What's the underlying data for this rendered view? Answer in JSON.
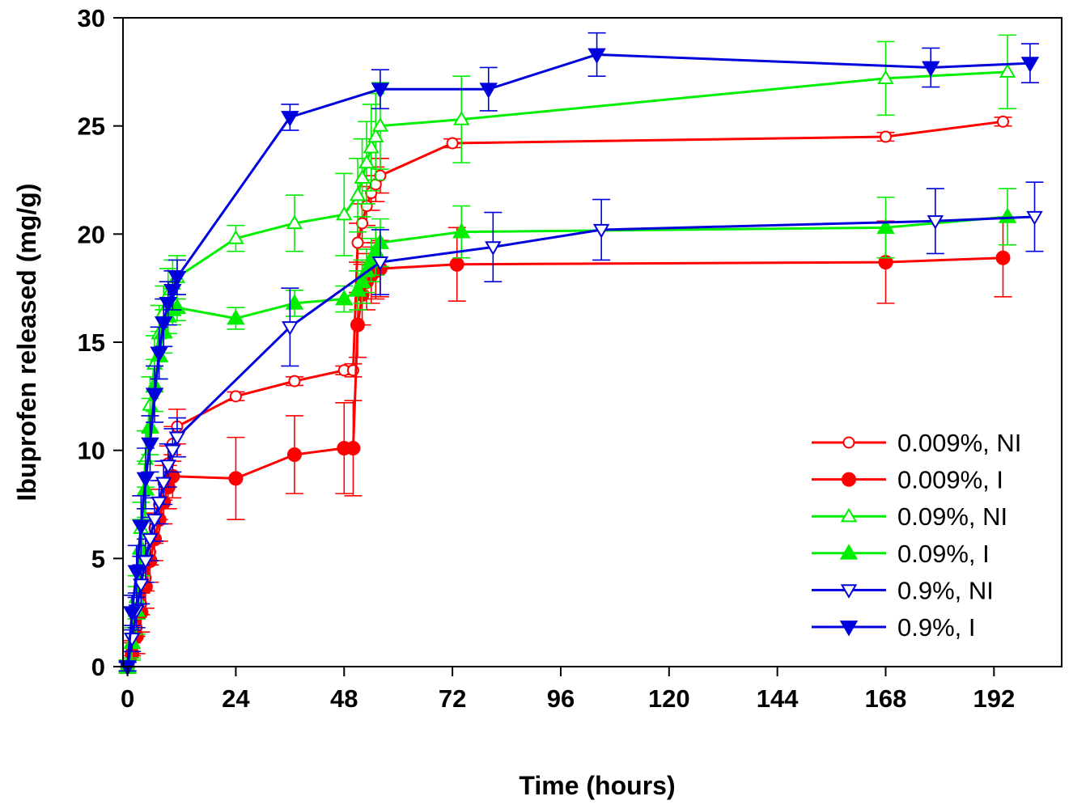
{
  "chart_data": {
    "type": "line",
    "title": "",
    "xlabel": "Time (hours)",
    "ylabel": "Ibuprofen released (mg/g)",
    "xlim": [
      -1,
      207
    ],
    "ylim": [
      0,
      30
    ],
    "xticks": [
      0,
      24,
      48,
      72,
      96,
      120,
      144,
      168,
      192
    ],
    "yticks": [
      0,
      5,
      10,
      15,
      20,
      25,
      30
    ],
    "grid": false,
    "legend_position": "lower-right",
    "series": [
      {
        "name": "0.009%, NI",
        "color": "#ff0000",
        "marker": "circle",
        "filled": false,
        "x": [
          0,
          1,
          2,
          3,
          4,
          5,
          6,
          7,
          8,
          9,
          10,
          11,
          24,
          37,
          48,
          50,
          51,
          52,
          53,
          54,
          55,
          56,
          72,
          168,
          194
        ],
        "y": [
          0,
          0.8,
          1.8,
          2.9,
          4.1,
          5.3,
          6.4,
          7.5,
          8.5,
          9.4,
          10.3,
          11.1,
          12.5,
          13.2,
          13.7,
          13.7,
          19.6,
          20.5,
          21.3,
          21.9,
          22.3,
          22.7,
          24.2,
          24.5,
          25.2
        ],
        "err": [
          0.2,
          0.3,
          0.4,
          0.5,
          0.6,
          0.6,
          0.7,
          0.7,
          0.8,
          0.8,
          0.8,
          0.8,
          0.2,
          0.2,
          0.2,
          0.3,
          0.9,
          0.9,
          0.9,
          0.8,
          0.8,
          0.8,
          0.2,
          0.2,
          0.2
        ]
      },
      {
        "name": "0.009%, I",
        "color": "#ff0000",
        "marker": "circle",
        "filled": true,
        "x": [
          0,
          1,
          2,
          3,
          4,
          5,
          6,
          7,
          8,
          9,
          10,
          24,
          37,
          48,
          50,
          51,
          52,
          53,
          54,
          55,
          56,
          73,
          168,
          194
        ],
        "y": [
          0,
          0.6,
          1.4,
          2.5,
          3.7,
          4.9,
          5.9,
          6.8,
          7.6,
          8.3,
          8.8,
          8.7,
          9.8,
          10.1,
          10.1,
          15.8,
          17.2,
          17.8,
          18.1,
          18.3,
          18.4,
          18.6,
          18.7,
          18.9
        ],
        "err": [
          0.3,
          0.6,
          0.8,
          0.9,
          1.0,
          1.0,
          1.0,
          1.0,
          1.0,
          1.0,
          1.0,
          1.9,
          1.8,
          2.1,
          2.2,
          1.5,
          1.4,
          1.3,
          1.3,
          1.3,
          1.3,
          1.7,
          1.9,
          1.8
        ]
      },
      {
        "name": "0.09%, NI",
        "color": "#00ee00",
        "marker": "triangle-up",
        "filled": false,
        "x": [
          0,
          1,
          2,
          3,
          4,
          5,
          6,
          7,
          8,
          9,
          10,
          11,
          24,
          37,
          48,
          51,
          52,
          53,
          54,
          55,
          56,
          74,
          168,
          195
        ],
        "y": [
          0,
          1.1,
          3.2,
          6.4,
          9.6,
          12.1,
          14.0,
          15.4,
          16.4,
          17.2,
          17.7,
          18.0,
          19.8,
          20.5,
          20.9,
          21.8,
          22.6,
          23.3,
          24.0,
          24.5,
          25.0,
          25.3,
          27.2,
          27.5
        ],
        "err": [
          0.3,
          0.7,
          1.0,
          1.2,
          1.3,
          1.3,
          1.3,
          1.3,
          1.2,
          1.2,
          1.1,
          1.0,
          0.6,
          1.3,
          1.9,
          1.7,
          1.8,
          1.9,
          2.0,
          2.0,
          2.0,
          2.0,
          1.7,
          1.7
        ]
      },
      {
        "name": "0.09%, I",
        "color": "#00ee00",
        "marker": "triangle-up",
        "filled": true,
        "x": [
          0,
          1,
          2,
          3,
          4,
          5,
          6,
          7,
          8,
          9,
          10,
          11,
          24,
          37,
          48,
          51,
          52,
          53,
          54,
          55,
          56,
          74,
          168,
          195
        ],
        "y": [
          0,
          1.1,
          2.6,
          5.5,
          8.2,
          11.1,
          13.0,
          14.4,
          15.5,
          16.2,
          16.5,
          16.6,
          16.1,
          16.8,
          17.0,
          17.4,
          17.8,
          18.3,
          18.8,
          19.2,
          19.6,
          20.1,
          20.3,
          20.8
        ],
        "err": [
          0.2,
          0.8,
          1.1,
          1.3,
          1.3,
          1.3,
          1.2,
          1.1,
          1.0,
          0.8,
          0.7,
          0.6,
          0.5,
          0.6,
          0.6,
          0.9,
          1.0,
          1.0,
          1.0,
          1.1,
          1.1,
          1.2,
          1.4,
          1.3
        ]
      },
      {
        "name": "0.9%, NI",
        "color": "#0000dd",
        "marker": "triangle-down",
        "filled": false,
        "x": [
          0,
          1,
          2,
          3,
          4,
          5,
          6,
          7,
          8,
          9,
          10,
          11,
          36,
          56,
          81,
          105,
          179,
          201
        ],
        "y": [
          0,
          1.3,
          2.6,
          3.8,
          4.9,
          5.9,
          6.8,
          7.6,
          8.5,
          9.3,
          10.0,
          10.6,
          15.7,
          18.7,
          19.4,
          20.2,
          20.6,
          20.8
        ],
        "err": [
          0.2,
          0.6,
          0.8,
          0.9,
          1.0,
          1.0,
          1.0,
          1.0,
          1.0,
          1.0,
          1.0,
          0.9,
          1.8,
          1.5,
          1.6,
          1.4,
          1.5,
          1.6
        ]
      },
      {
        "name": "0.9%, I",
        "color": "#0000dd",
        "marker": "triangle-down",
        "filled": true,
        "x": [
          0,
          1,
          2,
          3,
          4,
          5,
          6,
          7,
          8,
          9,
          10,
          11,
          36,
          56,
          80,
          104,
          178,
          200
        ],
        "y": [
          0,
          2.5,
          4.4,
          6.5,
          8.7,
          10.3,
          12.6,
          14.5,
          15.9,
          16.8,
          17.4,
          18.0,
          25.4,
          26.7,
          26.7,
          28.3,
          27.7,
          27.9
        ],
        "err": [
          0.2,
          0.8,
          1.2,
          1.4,
          1.4,
          1.3,
          1.3,
          1.2,
          1.1,
          1.0,
          0.9,
          0.8,
          0.6,
          0.9,
          1.0,
          1.0,
          0.9,
          0.9
        ]
      }
    ]
  }
}
